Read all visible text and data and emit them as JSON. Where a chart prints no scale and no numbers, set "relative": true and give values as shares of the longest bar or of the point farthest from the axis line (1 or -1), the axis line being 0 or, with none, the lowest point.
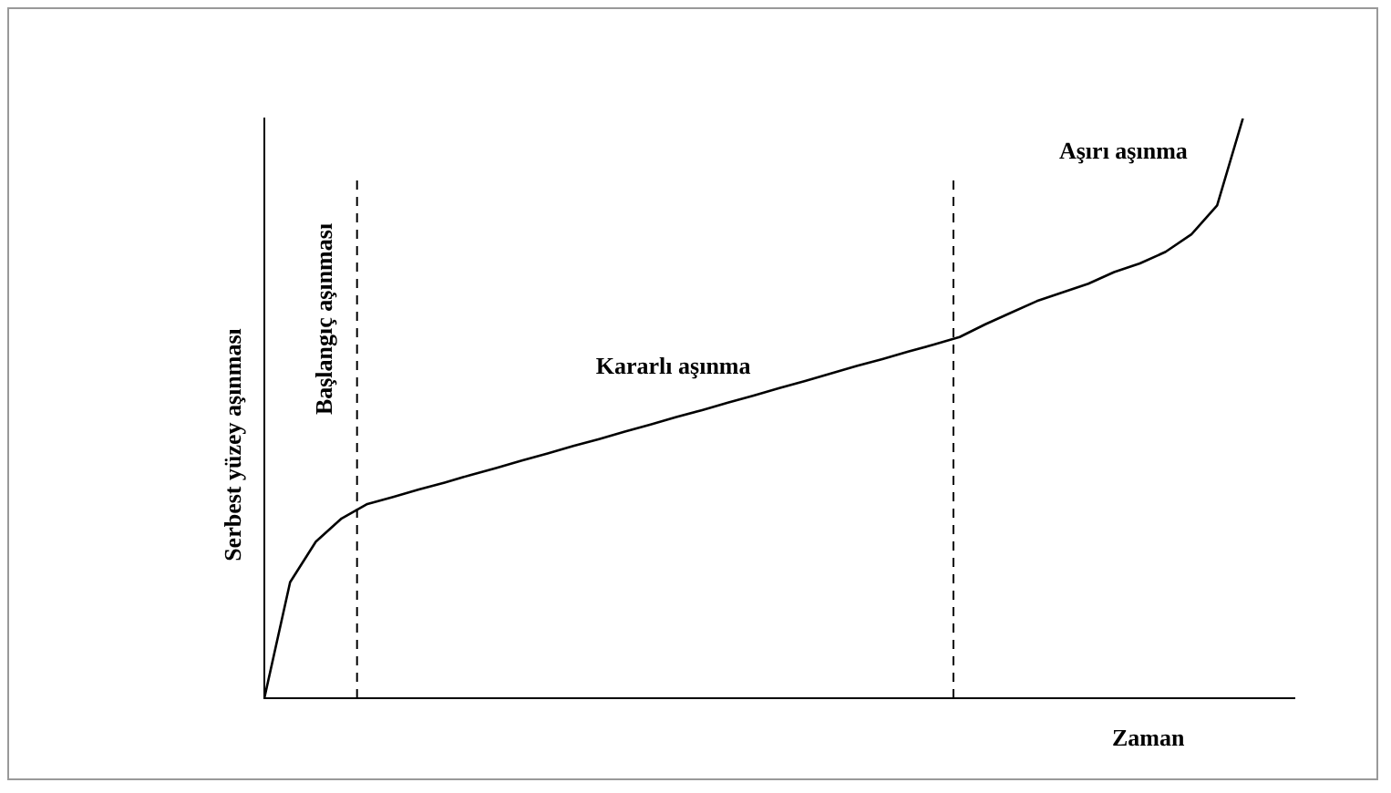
{
  "chart_data": {
    "type": "line",
    "relative": true,
    "ylabel": "Serbest yüzey aşınması",
    "xlabel": "Zaman",
    "categories": [
      null,
      null,
      null,
      null,
      null,
      null,
      null,
      null,
      null,
      null,
      null,
      null,
      null,
      null,
      null,
      null,
      null,
      null,
      null,
      null,
      null,
      null,
      null,
      null,
      null,
      null,
      null,
      null,
      null,
      null,
      null,
      null,
      null,
      null,
      null,
      null,
      null,
      null,
      null,
      null,
      null
    ],
    "series": [
      {
        "color": "#000000",
        "values": [
          0,
          0.2,
          0.27,
          0.31,
          0.335,
          0.347,
          0.36,
          0.372,
          0.385,
          0.397,
          0.41,
          0.422,
          0.435,
          0.447,
          0.46,
          0.472,
          0.485,
          0.497,
          0.51,
          0.522,
          0.535,
          0.547,
          0.56,
          0.573,
          0.585,
          0.598,
          0.61,
          0.623,
          0.645,
          0.665,
          0.685,
          0.7,
          0.715,
          0.735,
          0.75,
          0.77,
          0.8,
          0.85,
          1,
          null,
          null
        ]
      }
    ],
    "annotations": [
      "Başlangıç aşınması",
      "Kararlı aşınma",
      "Aşırı aşınma"
    ],
    "grid": false,
    "legend": false,
    "marker": "none",
    "line_style": "solid"
  }
}
